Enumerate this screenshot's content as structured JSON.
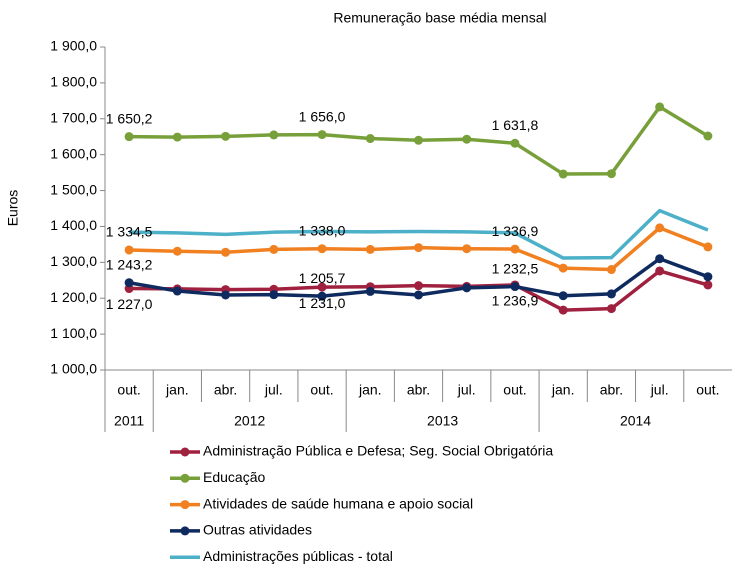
{
  "chart_data": {
    "type": "line",
    "title": "Remuneração  base média mensal",
    "y_label": "Euros",
    "categories": [
      "out.",
      "jan.",
      "abr.",
      "jul.",
      "out.",
      "jan.",
      "abr.",
      "jul.",
      "out.",
      "jan.",
      "abr.",
      "jul.",
      "out."
    ],
    "year_groups": [
      {
        "label": "2011",
        "count": 1
      },
      {
        "label": "2012",
        "count": 4
      },
      {
        "label": "2013",
        "count": 4
      },
      {
        "label": "2014",
        "count": 4
      }
    ],
    "ylim": [
      1000,
      1900
    ],
    "yticks": [
      {
        "value": 1000,
        "label": "1 000,0"
      },
      {
        "value": 1100,
        "label": "1 100,0"
      },
      {
        "value": 1200,
        "label": "1 200,0"
      },
      {
        "value": 1300,
        "label": "1 300,0"
      },
      {
        "value": 1400,
        "label": "1 400,0"
      },
      {
        "value": 1500,
        "label": "1 500,0"
      },
      {
        "value": 1600,
        "label": "1 600,0"
      },
      {
        "value": 1700,
        "label": "1 700,0"
      },
      {
        "value": 1800,
        "label": "1 800,0"
      },
      {
        "value": 1900,
        "label": "1 900,0"
      }
    ],
    "series": [
      {
        "name": "Administração Pública e Defesa; Seg. Social Obrigatória",
        "color": "#a0213f",
        "marker": true,
        "label_side": "below",
        "values": [
          1227.0,
          1226,
          1224,
          1225,
          1231.0,
          1232,
          1235,
          1233,
          1236.9,
          1167,
          1171,
          1276,
          1237
        ],
        "value_labels": [
          "1 227,0",
          null,
          null,
          null,
          "1 231,0",
          null,
          null,
          null,
          "1 236,9",
          null,
          null,
          null,
          null
        ]
      },
      {
        "name": "Educação",
        "color": "#77a03a",
        "marker": true,
        "label_side": "above",
        "values": [
          1650.2,
          1649,
          1651,
          1655,
          1656.0,
          1645,
          1640,
          1643,
          1631.8,
          1546,
          1547,
          1733,
          1652
        ],
        "value_labels": [
          "1 650,2",
          null,
          null,
          null,
          "1 656,0",
          null,
          null,
          null,
          "1 631,8",
          null,
          null,
          null,
          null
        ]
      },
      {
        "name": "Atividades de saúde humana e apoio social",
        "color": "#f08020",
        "marker": true,
        "label_side": "above",
        "values": [
          1334.5,
          1331,
          1328,
          1336,
          1338.0,
          1336,
          1341,
          1338,
          1336.9,
          1284,
          1280,
          1396,
          1343
        ],
        "value_labels": [
          "1 334,5",
          null,
          null,
          null,
          "1 338,0",
          null,
          null,
          null,
          "1 336,9",
          null,
          null,
          null,
          null
        ]
      },
      {
        "name": "Outras atividades",
        "color": "#0f2a5e",
        "marker": true,
        "label_side": "above",
        "values": [
          1243.2,
          1220,
          1209,
          1210,
          1205.7,
          1219,
          1209,
          1229,
          1232.5,
          1207,
          1212,
          1310,
          1260
        ],
        "value_labels": [
          "1 243,2",
          null,
          null,
          null,
          "1 205,7",
          null,
          null,
          null,
          "1 232,5",
          null,
          null,
          null,
          null
        ]
      },
      {
        "name": "Administrações públicas - total",
        "color": "#4bb0c8",
        "marker": false,
        "values": [
          1384,
          1382,
          1378,
          1384,
          1386,
          1385,
          1386,
          1385,
          1382,
          1312,
          1313,
          1444,
          1390
        ]
      }
    ]
  }
}
